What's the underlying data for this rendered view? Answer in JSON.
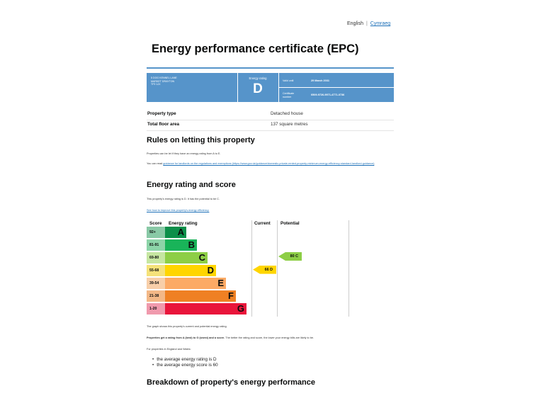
{
  "language": {
    "current": "English",
    "alternative": "Cymraeg"
  },
  "page_title": "Energy performance certificate (EPC)",
  "summary": {
    "address_lines": [
      "5 DOG KENNEL LANE",
      "MARKET DRAYTON",
      "TF9 1JX"
    ],
    "rating_label": "Energy rating",
    "rating": "D",
    "valid_until_label": "Valid until",
    "valid_until": "29 March 2031",
    "certificate_number_label": "Certificate number",
    "certificate_number": "0509-9726-9971-4771-0736"
  },
  "property": [
    {
      "label": "Property type",
      "value": "Detached house"
    },
    {
      "label": "Total floor area",
      "value": "137 square metres"
    }
  ],
  "rules": {
    "heading": "Rules on letting this property",
    "para1": "Properties can be let if they have an energy rating from A to E.",
    "para2_prefix": "You can read ",
    "para2_link": "guidance for landlords on the regulations and exemptions (https://www.gov.uk/guidance/domestic-private-rented-property-minimum-energy-efficiency-standard-landlord-guidance)",
    "para2_suffix": "."
  },
  "energy": {
    "heading": "Energy rating and score",
    "intro": "This property's energy rating is D. It has the potential to be C.",
    "link": "See how to improve this property's energy efficiency.",
    "caption": "The graph shows this property's current and potential energy rating.",
    "explain_bold": "Properties get a rating from A (best) to G (worst) and a score.",
    "explain_rest": " The better the rating and score, the lower your energy bills are likely to be.",
    "average_intro": "For properties in England and Wales:",
    "averages": [
      "the average energy rating is D",
      "the average energy score is 60"
    ]
  },
  "chart_data": {
    "type": "table",
    "headers": {
      "score": "Score",
      "rating": "Energy rating",
      "current": "Current",
      "potential": "Potential"
    },
    "bands": [
      {
        "range": "92+",
        "letter": "A",
        "color": "#0c8f4a",
        "tint": "#89c9a6"
      },
      {
        "range": "81-91",
        "letter": "B",
        "color": "#19b459",
        "tint": "#8cd4a8"
      },
      {
        "range": "69-80",
        "letter": "C",
        "color": "#8dce46",
        "tint": "#c6e6a1"
      },
      {
        "range": "55-68",
        "letter": "D",
        "color": "#ffd500",
        "tint": "#f5e27a"
      },
      {
        "range": "39-54",
        "letter": "E",
        "color": "#fcaa65",
        "tint": "#f8cfa9"
      },
      {
        "range": "21-38",
        "letter": "F",
        "color": "#ef8023",
        "tint": "#f3b887"
      },
      {
        "range": "1-20",
        "letter": "G",
        "color": "#e9153b",
        "tint": "#f09aad"
      }
    ],
    "current": {
      "score": 66,
      "letter": "D",
      "label": "66  D",
      "color": "#ffd500"
    },
    "potential": {
      "score": 80,
      "letter": "C",
      "label": "80  C",
      "color": "#8dce46"
    }
  },
  "breakdown": {
    "heading": "Breakdown of property's energy performance"
  }
}
